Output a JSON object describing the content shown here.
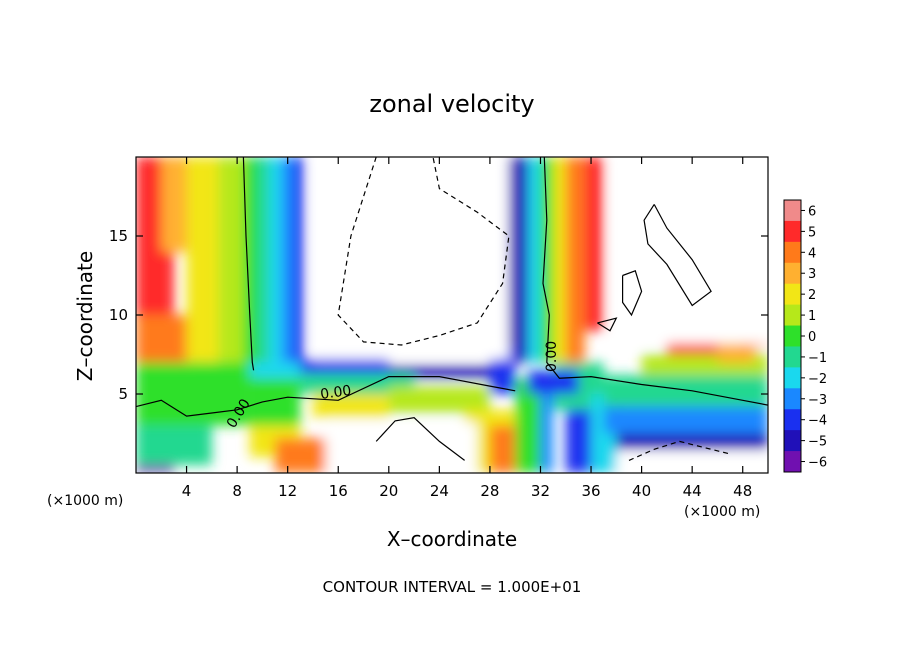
{
  "chart_data": {
    "type": "heatmap",
    "title": "zonal velocity",
    "xlabel": "X–coordinate",
    "ylabel": "Z–coordinate",
    "x_unit_note": "(×1000 m)",
    "z_unit_note": "(×1000 m)",
    "xlim": [
      0,
      50
    ],
    "ylim": [
      0,
      20
    ],
    "x_ticks": [
      4,
      8,
      12,
      16,
      20,
      24,
      28,
      32,
      36,
      40,
      44,
      48
    ],
    "y_ticks": [
      5,
      10,
      15
    ],
    "colorbar": {
      "min": -6,
      "max": 6,
      "ticks": [
        6,
        5,
        4,
        3,
        2,
        1,
        0,
        -1,
        -2,
        -3,
        -4,
        -5,
        -6
      ],
      "colors": [
        "#f08a8a",
        "#ff2a2a",
        "#ff7a1a",
        "#ffb030",
        "#f2e616",
        "#b6e81a",
        "#2ee02a",
        "#22d890",
        "#1ad8ee",
        "#1a88ff",
        "#1a30f0",
        "#2010b8",
        "#7010b0"
      ]
    },
    "contour_label": "0.00",
    "contour_interval_text": "CONTOUR INTERVAL =  1.000E+01",
    "contour_interval": 10,
    "description_fields": [
      {
        "name": "left-column",
        "x_range": [
          0,
          9
        ],
        "z_range": [
          0,
          20
        ],
        "u_min": -1,
        "u_max": 6
      },
      {
        "name": "blue-column",
        "x_range": [
          9,
          14
        ],
        "z_range": [
          6,
          20
        ],
        "u_min": -5,
        "u_max": -1
      },
      {
        "name": "white-upper-core",
        "x_range": [
          14,
          30
        ],
        "z_range": [
          7,
          20
        ],
        "u_min": -6,
        "u_max": -6
      },
      {
        "name": "right-red-column",
        "x_range": [
          33,
          37
        ],
        "z_range": [
          7,
          20
        ],
        "u_min": 3,
        "u_max": 6
      },
      {
        "name": "right-upper-core",
        "x_range": [
          37,
          50
        ],
        "z_range": [
          8,
          20
        ],
        "u_min": 6,
        "u_max": 6
      }
    ]
  }
}
